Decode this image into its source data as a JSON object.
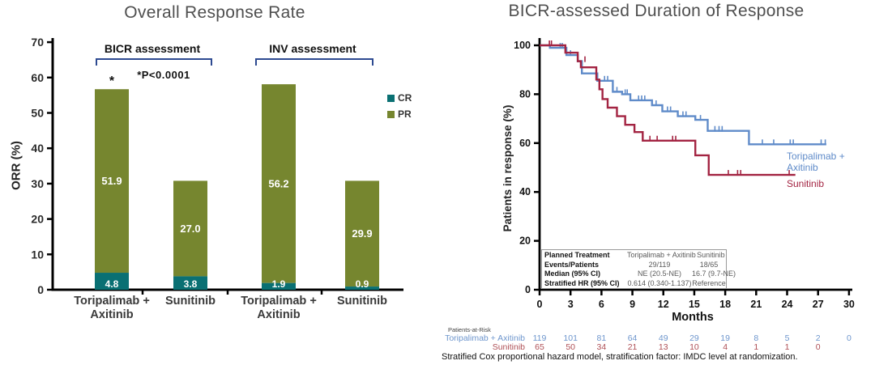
{
  "chart_data": [
    {
      "type": "bar",
      "title": "Overall Response Rate",
      "ylabel": "ORR (%)",
      "ylim": [
        0,
        70
      ],
      "yticks": [
        0,
        10,
        20,
        30,
        40,
        50,
        60,
        70
      ],
      "stack_order": [
        "CR",
        "PR"
      ],
      "legend": [
        {
          "label": "CR",
          "color": "#0a7073"
        },
        {
          "label": "PR",
          "color": "#76862f"
        }
      ],
      "groups": [
        {
          "name": "BICR assessment",
          "bars": [
            {
              "label": "Toripalimab +\nAxitinib",
              "CR": 4.8,
              "PR": 51.9
            },
            {
              "label": "Sunitinib",
              "CR": 3.8,
              "PR": 27.0
            }
          ]
        },
        {
          "name": "INV assessment",
          "bars": [
            {
              "label": "Toripalimab +\nAxitinib",
              "CR": 1.9,
              "PR": 56.2
            },
            {
              "label": "Sunitinib",
              "CR": 0.9,
              "PR": 29.9
            }
          ]
        }
      ],
      "annotation": "*P<0.0001",
      "sig_marker": "*"
    },
    {
      "type": "line",
      "subtype": "kaplan-meier",
      "title": "BICR-assessed Duration of Response",
      "xlabel": "Months",
      "ylabel": "Patients in response (%)",
      "xlim": [
        0,
        30
      ],
      "ylim": [
        0,
        100
      ],
      "xticks": [
        0,
        3,
        6,
        9,
        12,
        15,
        18,
        21,
        24,
        27,
        30
      ],
      "yticks": [
        0,
        20,
        40,
        60,
        80,
        100
      ],
      "series": [
        {
          "name": "Toripalimab + Axitinib",
          "color": "#5f8bc9",
          "steps": [
            [
              0,
              100
            ],
            [
              1.0,
              99
            ],
            [
              2.6,
              96
            ],
            [
              3.7,
              93.5
            ],
            [
              4.1,
              88.5
            ],
            [
              5.6,
              85.5
            ],
            [
              7.1,
              81
            ],
            [
              8.0,
              80
            ],
            [
              8.8,
              77.5
            ],
            [
              10.9,
              75.5
            ],
            [
              11.9,
              73
            ],
            [
              13.4,
              71
            ],
            [
              15.1,
              69.5
            ],
            [
              16.3,
              65
            ],
            [
              20.3,
              59.5
            ],
            [
              27.8,
              59.5
            ]
          ],
          "censors": [
            [
              2.0,
              99
            ],
            [
              2.2,
              99
            ],
            [
              3.0,
              96
            ],
            [
              6.3,
              85.5
            ],
            [
              6.6,
              85.5
            ],
            [
              7.5,
              81
            ],
            [
              8.3,
              80
            ],
            [
              8.5,
              80
            ],
            [
              9.6,
              77.5
            ],
            [
              9.9,
              77.5
            ],
            [
              10.2,
              77.5
            ],
            [
              11.3,
              75.5
            ],
            [
              12.4,
              73
            ],
            [
              12.7,
              73
            ],
            [
              13.9,
              71
            ],
            [
              14.2,
              71
            ],
            [
              15.6,
              69.5
            ],
            [
              17.0,
              65
            ],
            [
              17.4,
              65
            ],
            [
              17.7,
              65
            ],
            [
              21.6,
              59.5
            ],
            [
              22.7,
              59.5
            ],
            [
              24.3,
              59.5
            ],
            [
              24.6,
              59.5
            ],
            [
              27.3,
              59.5
            ],
            [
              27.7,
              59.5
            ]
          ]
        },
        {
          "name": "Sunitinib",
          "color": "#a32442",
          "steps": [
            [
              0,
              100
            ],
            [
              2.5,
              97
            ],
            [
              3.7,
              93.5
            ],
            [
              4.0,
              91
            ],
            [
              5.5,
              86
            ],
            [
              5.8,
              82
            ],
            [
              6.1,
              78
            ],
            [
              6.6,
              74.5
            ],
            [
              7.5,
              71
            ],
            [
              8.3,
              67.5
            ],
            [
              9.2,
              64.5
            ],
            [
              10.0,
              61
            ],
            [
              15.1,
              55
            ],
            [
              16.4,
              47
            ],
            [
              24.8,
              47
            ]
          ],
          "censors": [
            [
              0.95,
              100
            ],
            [
              1.15,
              100
            ],
            [
              4.4,
              93.5
            ],
            [
              10.7,
              61
            ],
            [
              11.4,
              61
            ],
            [
              12.9,
              61
            ],
            [
              13.2,
              61
            ],
            [
              18.3,
              47
            ],
            [
              19.2,
              47
            ],
            [
              19.5,
              47
            ],
            [
              24.2,
              47
            ]
          ]
        }
      ],
      "stats_table": {
        "rows": [
          [
            "Planned Treatment",
            "Toripalimab + Axitinib",
            "Sunitinib"
          ],
          [
            "Events/Patients",
            "29/119",
            "18/65"
          ],
          [
            "Median (95% CI)",
            "NE (20.5-NE)",
            "16.7 (9.7-NE)"
          ],
          [
            "Stratified HR (95% CI)",
            "0.614 (0.340-1.137)",
            "Reference"
          ]
        ]
      },
      "at_risk": {
        "title": "Patients-at-Risk",
        "rows": [
          {
            "name": "Toripalimab + Axitinib",
            "color": "#6e96cd",
            "values": [
              "119",
              "101",
              "81",
              "64",
              "49",
              "29",
              "19",
              "8",
              "5",
              "2",
              "0"
            ]
          },
          {
            "name": "Sunitinib",
            "color": "#ae4f55",
            "values": [
              "65",
              "50",
              "34",
              "21",
              "13",
              "10",
              "4",
              "1",
              "1",
              "0"
            ]
          }
        ]
      },
      "footnote": "Stratified Cox proportional hazard model, stratification factor: IMDC level at randomization."
    }
  ]
}
